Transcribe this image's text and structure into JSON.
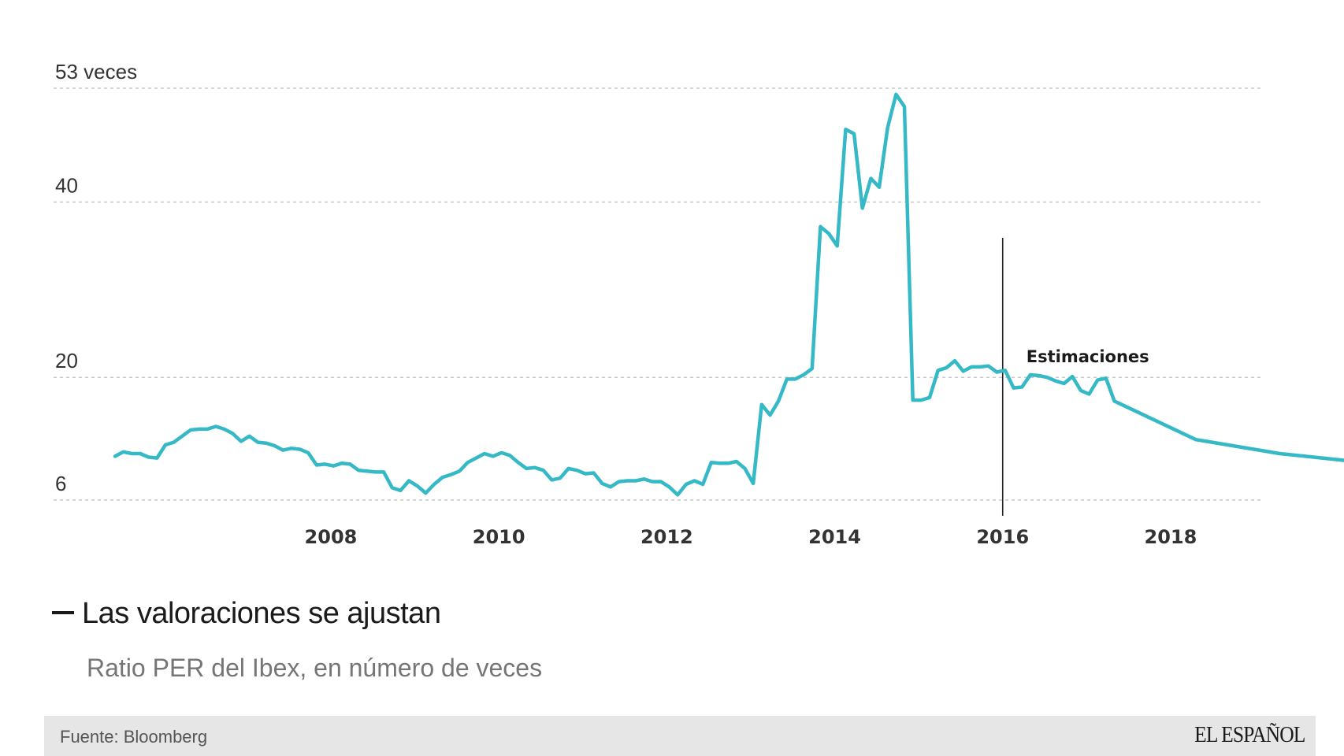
{
  "chart_data": {
    "type": "line",
    "title": "Las valoraciones se ajustan",
    "subtitle": "Ratio PER del Ibex, en número de veces",
    "source": "Fuente: Bloomberg",
    "brand": "EL ESPAÑOL",
    "xlabel": "",
    "ylabel": "",
    "y_ticks": [
      {
        "value": 6,
        "label": "6"
      },
      {
        "value": 20,
        "label": "20"
      },
      {
        "value": 40,
        "label": "40"
      },
      {
        "value": 53,
        "label": "53 veces"
      }
    ],
    "x_ticks": [
      {
        "value": 2008,
        "label": "2008"
      },
      {
        "value": 2010,
        "label": "2010"
      },
      {
        "value": 2012,
        "label": "2012"
      },
      {
        "value": 2014,
        "label": "2014"
      },
      {
        "value": 2016,
        "label": "2016"
      },
      {
        "value": 2018,
        "label": "2018"
      }
    ],
    "xlim": [
      2005.43,
      2019.07
    ],
    "ylim": [
      6,
      53
    ],
    "grid": true,
    "line_color": "#35b9c6",
    "annotation": {
      "x": 2016,
      "label": "Estimaciones"
    },
    "series": [
      {
        "values": [
          [
            2005.43,
            11.0
          ],
          [
            2005.53,
            11.5
          ],
          [
            2005.63,
            11.3
          ],
          [
            2005.73,
            11.3
          ],
          [
            2005.83,
            10.9
          ],
          [
            2005.93,
            10.8
          ],
          [
            2006.03,
            12.3
          ],
          [
            2006.13,
            12.6
          ],
          [
            2006.23,
            13.3
          ],
          [
            2006.33,
            14.0
          ],
          [
            2006.43,
            14.1
          ],
          [
            2006.53,
            14.1
          ],
          [
            2006.63,
            14.4
          ],
          [
            2006.73,
            14.1
          ],
          [
            2006.83,
            13.6
          ],
          [
            2006.93,
            12.7
          ],
          [
            2007.03,
            13.3
          ],
          [
            2007.13,
            12.6
          ],
          [
            2007.23,
            12.5
          ],
          [
            2007.33,
            12.2
          ],
          [
            2007.43,
            11.7
          ],
          [
            2007.53,
            11.9
          ],
          [
            2007.63,
            11.8
          ],
          [
            2007.73,
            11.4
          ],
          [
            2007.83,
            10.0
          ],
          [
            2007.93,
            10.1
          ],
          [
            2008.03,
            9.9
          ],
          [
            2008.13,
            10.2
          ],
          [
            2008.23,
            10.1
          ],
          [
            2008.33,
            9.4
          ],
          [
            2008.43,
            9.3
          ],
          [
            2008.53,
            9.2
          ],
          [
            2008.63,
            9.2
          ],
          [
            2008.73,
            7.4
          ],
          [
            2008.83,
            7.1
          ],
          [
            2008.93,
            8.2
          ],
          [
            2009.03,
            7.6
          ],
          [
            2009.13,
            6.8
          ],
          [
            2009.23,
            7.8
          ],
          [
            2009.33,
            8.6
          ],
          [
            2009.43,
            8.9
          ],
          [
            2009.53,
            9.3
          ],
          [
            2009.63,
            10.3
          ],
          [
            2009.73,
            10.8
          ],
          [
            2009.83,
            11.3
          ],
          [
            2009.93,
            11.0
          ],
          [
            2010.03,
            11.4
          ],
          [
            2010.13,
            11.1
          ],
          [
            2010.23,
            10.3
          ],
          [
            2010.33,
            9.6
          ],
          [
            2010.43,
            9.7
          ],
          [
            2010.53,
            9.4
          ],
          [
            2010.63,
            8.3
          ],
          [
            2010.73,
            8.5
          ],
          [
            2010.83,
            9.6
          ],
          [
            2010.93,
            9.4
          ],
          [
            2011.03,
            9.0
          ],
          [
            2011.13,
            9.1
          ],
          [
            2011.23,
            7.9
          ],
          [
            2011.33,
            7.5
          ],
          [
            2011.43,
            8.1
          ],
          [
            2011.53,
            8.2
          ],
          [
            2011.63,
            8.2
          ],
          [
            2011.73,
            8.4
          ],
          [
            2011.83,
            8.1
          ],
          [
            2011.93,
            8.1
          ],
          [
            2012.03,
            7.5
          ],
          [
            2012.13,
            6.6
          ],
          [
            2012.23,
            7.8
          ],
          [
            2012.33,
            8.2
          ],
          [
            2012.43,
            7.8
          ],
          [
            2012.53,
            10.3
          ],
          [
            2012.63,
            10.2
          ],
          [
            2012.73,
            10.2
          ],
          [
            2012.83,
            10.4
          ],
          [
            2012.93,
            9.6
          ],
          [
            2013.03,
            7.9
          ],
          [
            2013.13,
            16.9
          ],
          [
            2013.23,
            15.7
          ],
          [
            2013.33,
            17.3
          ],
          [
            2013.43,
            19.8
          ],
          [
            2013.53,
            19.8
          ],
          [
            2013.63,
            20.3
          ],
          [
            2013.73,
            21.0
          ],
          [
            2013.83,
            37.2
          ],
          [
            2013.93,
            36.4
          ],
          [
            2014.03,
            35.0
          ],
          [
            2014.13,
            48.3
          ],
          [
            2014.23,
            47.8
          ],
          [
            2014.33,
            39.3
          ],
          [
            2014.43,
            42.7
          ],
          [
            2014.53,
            41.7
          ],
          [
            2014.63,
            48.5
          ],
          [
            2014.73,
            52.3
          ],
          [
            2014.83,
            50.9
          ],
          [
            2014.93,
            17.4
          ],
          [
            2015.03,
            17.4
          ],
          [
            2015.13,
            17.7
          ],
          [
            2015.23,
            20.8
          ],
          [
            2015.33,
            21.1
          ],
          [
            2015.43,
            21.9
          ],
          [
            2015.53,
            20.7
          ],
          [
            2015.63,
            21.2
          ],
          [
            2015.73,
            21.2
          ],
          [
            2015.83,
            21.3
          ],
          [
            2015.93,
            20.6
          ],
          [
            2016.03,
            20.8
          ],
          [
            2016.13,
            18.8
          ],
          [
            2016.23,
            18.9
          ],
          [
            2016.33,
            20.3
          ],
          [
            2016.43,
            20.2
          ],
          [
            2016.53,
            20.0
          ],
          [
            2016.63,
            19.6
          ],
          [
            2016.73,
            19.3
          ],
          [
            2016.83,
            20.1
          ],
          [
            2016.93,
            18.5
          ],
          [
            2017.03,
            18.1
          ],
          [
            2017.13,
            19.7
          ],
          [
            2017.23,
            19.9
          ],
          [
            2017.33,
            17.3
          ],
          [
            2018.3,
            12.9
          ],
          [
            2019.3,
            11.3
          ],
          [
            2020.3,
            10.3
          ]
        ]
      }
    ]
  }
}
